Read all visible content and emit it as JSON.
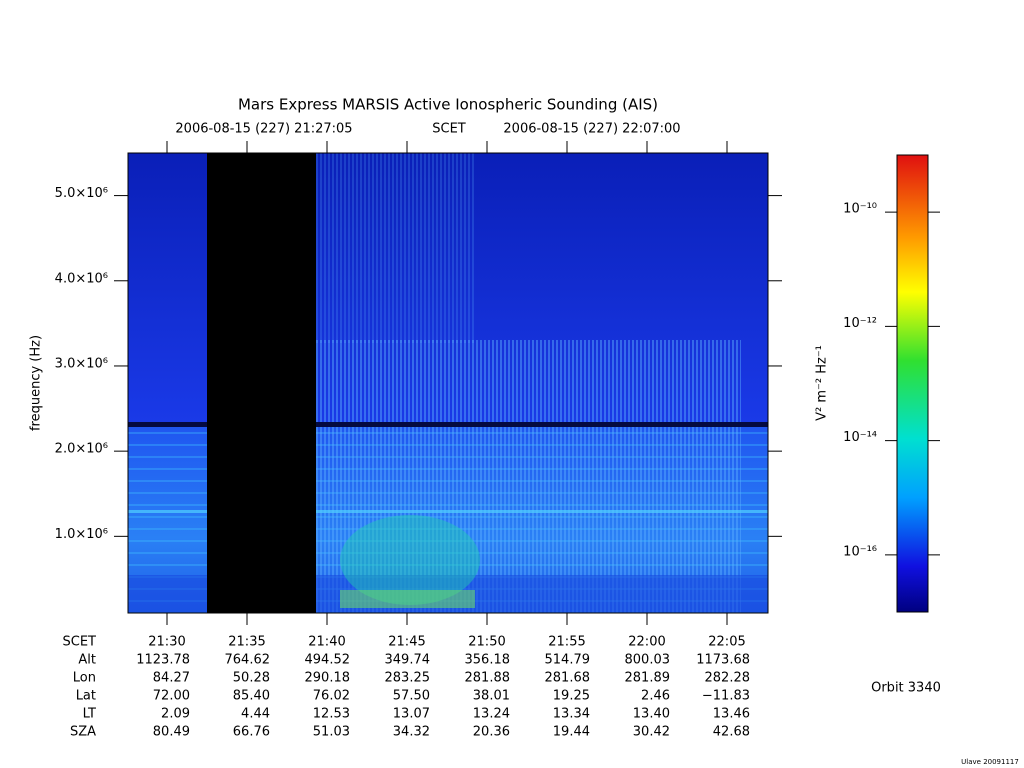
{
  "chart_data": {
    "type": "spectrogram",
    "title": "Mars Express MARSIS Active Ionospheric Sounding (AIS)",
    "start_time": "2006-08-15 (227) 21:27:05",
    "time_system": "SCET",
    "end_time": "2006-08-15 (227) 22:07:00",
    "y_label": "frequency (Hz)",
    "ylim": [
      100000,
      5500000
    ],
    "yticks": [
      {
        "value": 1000000,
        "label": "1.0×10⁶"
      },
      {
        "value": 2000000,
        "label": "2.0×10⁶"
      },
      {
        "value": 3000000,
        "label": "3.0×10⁶"
      },
      {
        "value": 4000000,
        "label": "4.0×10⁶"
      },
      {
        "value": 5000000,
        "label": "5.0×10⁶"
      }
    ],
    "categories": [
      "21:30",
      "21:35",
      "21:40",
      "21:45",
      "21:50",
      "21:55",
      "22:00",
      "22:05"
    ],
    "colorbar": {
      "label": "V² m⁻² Hz⁻¹",
      "log": true,
      "lim": [
        1e-17,
        1e-09
      ],
      "ticks": [
        {
          "value": 1e-16,
          "label": "10⁻¹⁶"
        },
        {
          "value": 1e-14,
          "label": "10⁻¹⁴"
        },
        {
          "value": 1e-12,
          "label": "10⁻¹²"
        },
        {
          "value": 1e-10,
          "label": "10⁻¹⁰"
        }
      ]
    }
  },
  "ephemeris": {
    "labels": [
      "SCET",
      "Alt",
      "Lon",
      "Lat",
      "LT",
      "SZA"
    ],
    "rows": [
      [
        "1123.78",
        "764.62",
        "494.52",
        "349.74",
        "356.18",
        "514.79",
        "800.03",
        "1173.68"
      ],
      [
        "84.27",
        "50.28",
        "290.18",
        "283.25",
        "281.88",
        "281.68",
        "281.89",
        "282.28"
      ],
      [
        "72.00",
        "85.40",
        "76.02",
        "57.50",
        "38.01",
        "19.25",
        "2.46",
        "−11.83"
      ],
      [
        "2.09",
        "4.44",
        "12.53",
        "13.07",
        "13.24",
        "13.34",
        "13.40",
        "13.46"
      ],
      [
        "80.49",
        "66.76",
        "51.03",
        "34.32",
        "20.36",
        "19.44",
        "30.42",
        "42.68"
      ]
    ]
  },
  "orbit": "Orbit 3340",
  "footer": "Ulave 20091117"
}
